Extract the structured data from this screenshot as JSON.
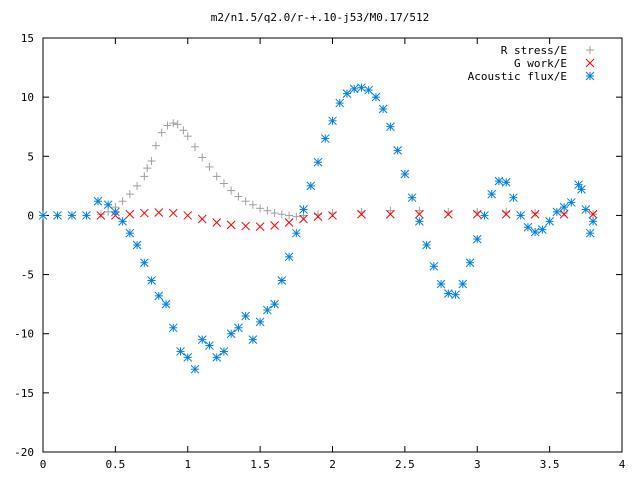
{
  "chart_data": {
    "type": "scatter",
    "title": "m2/n1.5/q2.0/r-+.10-j53/M0.17/512",
    "xlabel": "",
    "ylabel": "",
    "xlim": [
      0,
      4
    ],
    "ylim": [
      -20,
      15
    ],
    "x_ticks": [
      "0",
      "0.5",
      "1",
      "1.5",
      "2",
      "2.5",
      "3",
      "3.5",
      "4"
    ],
    "y_ticks": [
      "15",
      "10",
      "5",
      "0",
      "-5",
      "-10",
      "-15",
      "-20"
    ],
    "legend_position": "top-right",
    "grid": false,
    "series": [
      {
        "name": "R stress/E",
        "marker": "plus",
        "color": "#a0a0a0",
        "points": [
          [
            0.4,
            0.1
          ],
          [
            0.45,
            0.3
          ],
          [
            0.5,
            0.7
          ],
          [
            0.55,
            1.2
          ],
          [
            0.6,
            1.8
          ],
          [
            0.65,
            2.5
          ],
          [
            0.7,
            3.3
          ],
          [
            0.72,
            4.0
          ],
          [
            0.75,
            4.6
          ],
          [
            0.78,
            5.9
          ],
          [
            0.82,
            7.0
          ],
          [
            0.86,
            7.6
          ],
          [
            0.9,
            7.8
          ],
          [
            0.93,
            7.7
          ],
          [
            0.97,
            7.2
          ],
          [
            1.0,
            6.7
          ],
          [
            1.05,
            5.8
          ],
          [
            1.1,
            4.9
          ],
          [
            1.15,
            4.1
          ],
          [
            1.2,
            3.3
          ],
          [
            1.25,
            2.7
          ],
          [
            1.3,
            2.1
          ],
          [
            1.35,
            1.6
          ],
          [
            1.4,
            1.2
          ],
          [
            1.45,
            0.9
          ],
          [
            1.5,
            0.6
          ],
          [
            1.55,
            0.4
          ],
          [
            1.6,
            0.2
          ],
          [
            1.65,
            0.1
          ],
          [
            1.7,
            0.0
          ],
          [
            1.75,
            -0.1
          ],
          [
            1.8,
            0.0
          ],
          [
            1.9,
            0.1
          ],
          [
            2.0,
            0.2
          ],
          [
            2.2,
            0.3
          ],
          [
            2.4,
            0.4
          ],
          [
            2.6,
            0.4
          ],
          [
            2.8,
            0.3
          ],
          [
            3.0,
            0.3
          ],
          [
            3.2,
            0.3
          ],
          [
            3.4,
            0.2
          ],
          [
            3.6,
            0.2
          ],
          [
            3.8,
            0.1
          ]
        ]
      },
      {
        "name": "G work/E",
        "marker": "cross",
        "color": "#ff0000",
        "points": [
          [
            0.4,
            0.0
          ],
          [
            0.5,
            0.0
          ],
          [
            0.6,
            0.1
          ],
          [
            0.7,
            0.2
          ],
          [
            0.8,
            0.25
          ],
          [
            0.9,
            0.2
          ],
          [
            1.0,
            0.0
          ],
          [
            1.1,
            -0.3
          ],
          [
            1.2,
            -0.6
          ],
          [
            1.3,
            -0.8
          ],
          [
            1.4,
            -0.9
          ],
          [
            1.5,
            -0.95
          ],
          [
            1.6,
            -0.85
          ],
          [
            1.7,
            -0.6
          ],
          [
            1.8,
            -0.3
          ],
          [
            1.9,
            -0.1
          ],
          [
            2.0,
            0.0
          ],
          [
            2.2,
            0.1
          ],
          [
            2.4,
            0.1
          ],
          [
            2.6,
            0.1
          ],
          [
            2.8,
            0.1
          ],
          [
            3.0,
            0.1
          ],
          [
            3.2,
            0.1
          ],
          [
            3.4,
            0.1
          ],
          [
            3.6,
            0.1
          ],
          [
            3.8,
            0.1
          ]
        ]
      },
      {
        "name": "Acoustic flux/E",
        "marker": "star",
        "color": "#0080e0",
        "points": [
          [
            0.0,
            0.0
          ],
          [
            0.1,
            0.0
          ],
          [
            0.2,
            0.0
          ],
          [
            0.3,
            0.0
          ],
          [
            0.38,
            1.2
          ],
          [
            0.45,
            0.9
          ],
          [
            0.5,
            0.3
          ],
          [
            0.55,
            -0.5
          ],
          [
            0.6,
            -1.5
          ],
          [
            0.65,
            -2.5
          ],
          [
            0.7,
            -4.0
          ],
          [
            0.75,
            -5.5
          ],
          [
            0.8,
            -6.8
          ],
          [
            0.85,
            -7.5
          ],
          [
            0.9,
            -9.5
          ],
          [
            0.95,
            -11.5
          ],
          [
            1.0,
            -12.0
          ],
          [
            1.05,
            -13.0
          ],
          [
            1.1,
            -10.5
          ],
          [
            1.15,
            -11.0
          ],
          [
            1.2,
            -12.0
          ],
          [
            1.25,
            -11.5
          ],
          [
            1.3,
            -10.0
          ],
          [
            1.35,
            -9.5
          ],
          [
            1.4,
            -8.5
          ],
          [
            1.45,
            -10.5
          ],
          [
            1.5,
            -9.0
          ],
          [
            1.55,
            -8.0
          ],
          [
            1.6,
            -7.5
          ],
          [
            1.65,
            -5.5
          ],
          [
            1.7,
            -3.5
          ],
          [
            1.75,
            -1.5
          ],
          [
            1.8,
            0.5
          ],
          [
            1.85,
            2.5
          ],
          [
            1.9,
            4.5
          ],
          [
            1.95,
            6.5
          ],
          [
            2.0,
            8.0
          ],
          [
            2.05,
            9.5
          ],
          [
            2.1,
            10.3
          ],
          [
            2.15,
            10.7
          ],
          [
            2.2,
            10.8
          ],
          [
            2.25,
            10.6
          ],
          [
            2.3,
            10.0
          ],
          [
            2.35,
            9.0
          ],
          [
            2.4,
            7.5
          ],
          [
            2.45,
            5.5
          ],
          [
            2.5,
            3.5
          ],
          [
            2.55,
            1.5
          ],
          [
            2.6,
            -0.5
          ],
          [
            2.65,
            -2.5
          ],
          [
            2.7,
            -4.3
          ],
          [
            2.75,
            -5.8
          ],
          [
            2.8,
            -6.6
          ],
          [
            2.85,
            -6.7
          ],
          [
            2.9,
            -5.8
          ],
          [
            2.95,
            -4.0
          ],
          [
            3.0,
            -2.0
          ],
          [
            3.05,
            0.0
          ],
          [
            3.1,
            1.8
          ],
          [
            3.15,
            2.9
          ],
          [
            3.2,
            2.8
          ],
          [
            3.25,
            1.5
          ],
          [
            3.3,
            0.0
          ],
          [
            3.35,
            -1.0
          ],
          [
            3.4,
            -1.4
          ],
          [
            3.45,
            -1.2
          ],
          [
            3.5,
            -0.5
          ],
          [
            3.55,
            0.3
          ],
          [
            3.6,
            0.7
          ],
          [
            3.65,
            1.1
          ],
          [
            3.7,
            2.6
          ],
          [
            3.72,
            2.2
          ],
          [
            3.75,
            0.5
          ],
          [
            3.78,
            -1.5
          ],
          [
            3.8,
            -0.5
          ]
        ]
      }
    ]
  }
}
